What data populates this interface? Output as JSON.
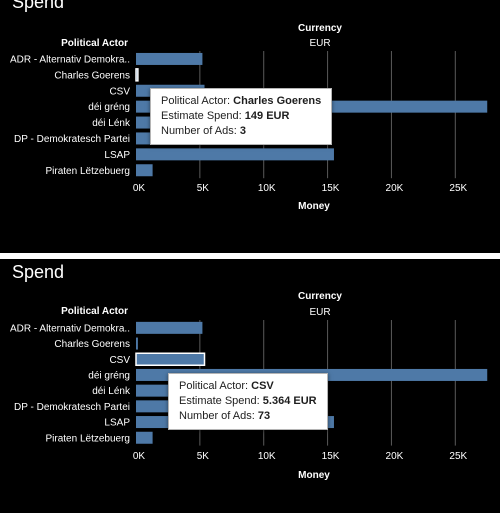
{
  "chart_data": [
    {
      "type": "bar",
      "title": "Spend",
      "column_header": "Currency",
      "column_value": "EUR",
      "row_header": "Political Actor",
      "xlabel": "Money",
      "xlim": [
        0,
        28500
      ],
      "xticks": [
        0,
        5000,
        10000,
        15000,
        20000,
        25000
      ],
      "xtick_labels": [
        "0K",
        "5K",
        "10K",
        "15K",
        "20K",
        "25K"
      ],
      "categories": [
        "ADR  - Alternativ Demokra..",
        "Charles Goerens",
        "CSV",
        "déi gréng",
        "déi Lénk",
        "DP - Demokratesch Partei",
        "LSAP",
        "Piraten Lëtzebuerg"
      ],
      "values": [
        5200,
        149,
        5364,
        27500,
        4100,
        3900,
        15500,
        1300
      ],
      "bar_color": "#4e79a7",
      "grid": true,
      "hovered_index": 1
    },
    {
      "type": "bar",
      "title": "Spend",
      "column_header": "Currency",
      "column_value": "EUR",
      "row_header": "Political Actor",
      "xlabel": "Money",
      "xlim": [
        0,
        28500
      ],
      "xticks": [
        0,
        5000,
        10000,
        15000,
        20000,
        25000
      ],
      "xtick_labels": [
        "0K",
        "5K",
        "10K",
        "15K",
        "20K",
        "25K"
      ],
      "categories": [
        "ADR  - Alternativ Demokra..",
        "Charles Goerens",
        "CSV",
        "déi gréng",
        "déi Lénk",
        "DP - Demokratesch Partei",
        "LSAP",
        "Piraten Lëtzebuerg"
      ],
      "values": [
        5200,
        149,
        5364,
        27500,
        4100,
        3900,
        15500,
        1300
      ],
      "bar_color": "#4e79a7",
      "grid": true,
      "hovered_index": 2
    }
  ],
  "tooltips": [
    {
      "actor_label": "Political Actor:",
      "actor_value": "Charles Goerens",
      "spend_label": "Estimate Spend:",
      "spend_value": "149 EUR",
      "ads_label": "Number of Ads:",
      "ads_value": "3"
    },
    {
      "actor_label": "Political Actor:",
      "actor_value": "CSV",
      "spend_label": "Estimate Spend:",
      "spend_value": "5.364 EUR",
      "ads_label": "Number of Ads:",
      "ads_value": "73"
    }
  ],
  "colors": {
    "background": "#000000",
    "bar": "#4e79a7",
    "text": "#ffffff",
    "grid": "#5a5a5a",
    "divider": "#ffffff"
  }
}
